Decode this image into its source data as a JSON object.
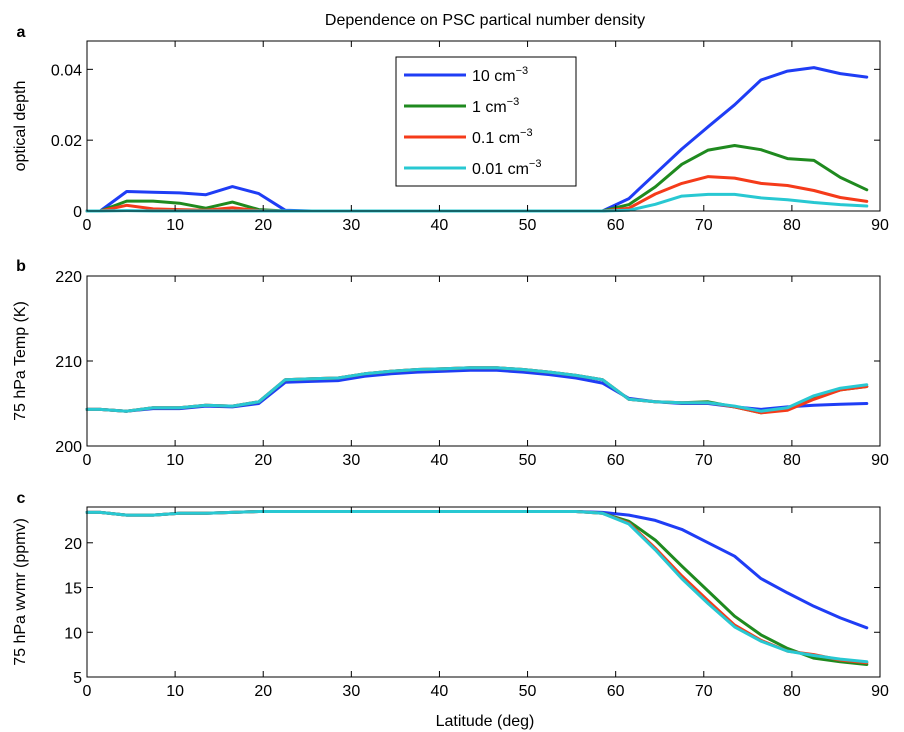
{
  "figure_title": "Dependence on PSC partical number density",
  "xlabel": "Latitude (deg)",
  "legend": [
    {
      "base": "10 cm",
      "exp": "−3",
      "color": "#1f3df5"
    },
    {
      "base": "1 cm",
      "exp": "−3",
      "color": "#1f8a1f"
    },
    {
      "base": "0.1 cm",
      "exp": "−3",
      "color": "#f53b1a"
    },
    {
      "base": "0.01 cm",
      "exp": "−3",
      "color": "#28c8d2"
    }
  ],
  "chart_data": [
    {
      "panel_label": "a",
      "type": "line",
      "ylabel": "optical depth",
      "xlim": [
        0,
        90
      ],
      "ylim": [
        0,
        0.048
      ],
      "xticks": [
        0,
        10,
        20,
        30,
        40,
        50,
        60,
        70,
        80,
        90
      ],
      "xtick_labels": [
        "0",
        "10",
        "20",
        "30",
        "40",
        "50",
        "60",
        "70",
        "80",
        "90"
      ],
      "yticks": [
        0,
        0.02,
        0.04
      ],
      "ytick_labels": [
        "0",
        "0.02",
        "0.04"
      ],
      "x": [
        0,
        1.5,
        4.5,
        7.5,
        10.5,
        13.5,
        16.5,
        19.5,
        22.5,
        25.5,
        28.5,
        31.5,
        34.5,
        37.5,
        40.5,
        43.5,
        46.5,
        49.5,
        52.5,
        55.5,
        58.5,
        61.5,
        64.5,
        67.5,
        70.5,
        73.5,
        76.5,
        79.5,
        82.5,
        85.5,
        88.5
      ],
      "series": [
        {
          "name": "10 cm−3",
          "values": [
            0,
            0,
            0.0055,
            0.0053,
            0.0051,
            0.0046,
            0.0069,
            0.0049,
            0.0002,
            0,
            0,
            0,
            0,
            0,
            0,
            0,
            0,
            0,
            0,
            0,
            0,
            0.0035,
            0.0105,
            0.0175,
            0.0238,
            0.03,
            0.037,
            0.0395,
            0.0405,
            0.0388,
            0.0378
          ]
        },
        {
          "name": "1 cm−3",
          "values": [
            0,
            0,
            0.0028,
            0.0028,
            0.0022,
            0.0008,
            0.0025,
            0.0004,
            0,
            0,
            0,
            0,
            0,
            0,
            0,
            0,
            0,
            0,
            0,
            0,
            0,
            0.0018,
            0.0068,
            0.0132,
            0.0172,
            0.0185,
            0.0173,
            0.0148,
            0.0143,
            0.0095,
            0.006
          ]
        },
        {
          "name": "0.1 cm−3",
          "values": [
            0,
            0,
            0.0016,
            0.0006,
            0.0004,
            0.0002,
            0.0009,
            0.0001,
            0,
            0,
            0,
            0,
            0,
            0,
            0,
            0,
            0,
            0,
            0,
            0,
            0,
            0.0008,
            0.0048,
            0.0078,
            0.0097,
            0.0093,
            0.0078,
            0.0072,
            0.0058,
            0.0038,
            0.0027
          ]
        },
        {
          "name": "0.01 cm−3",
          "values": [
            0,
            0,
            0.0001,
            0,
            0,
            0,
            0,
            0,
            0,
            0,
            0,
            0,
            0,
            0,
            0,
            0,
            0,
            0,
            0,
            0,
            0,
            0.0002,
            0.0019,
            0.0042,
            0.0047,
            0.0047,
            0.0037,
            0.0032,
            0.0024,
            0.0018,
            0.0014
          ]
        }
      ]
    },
    {
      "panel_label": "b",
      "type": "line",
      "ylabel": "75 hPa Temp (K)",
      "xlim": [
        0,
        90
      ],
      "ylim": [
        200,
        220
      ],
      "xticks": [
        0,
        10,
        20,
        30,
        40,
        50,
        60,
        70,
        80,
        90
      ],
      "xtick_labels": [
        "0",
        "10",
        "20",
        "30",
        "40",
        "50",
        "60",
        "70",
        "80",
        "90"
      ],
      "yticks": [
        200,
        210,
        220
      ],
      "ytick_labels": [
        "200",
        "210",
        "220"
      ],
      "x": [
        0,
        1.5,
        4.5,
        7.5,
        10.5,
        13.5,
        16.5,
        19.5,
        22.5,
        25.5,
        28.5,
        31.5,
        34.5,
        37.5,
        40.5,
        43.5,
        46.5,
        49.5,
        52.5,
        55.5,
        58.5,
        61.5,
        64.5,
        67.5,
        70.5,
        73.5,
        76.5,
        79.5,
        82.5,
        85.5,
        88.5
      ],
      "series": [
        {
          "name": "10 cm−3",
          "values": [
            204.3,
            204.3,
            204.1,
            204.4,
            204.4,
            204.7,
            204.6,
            205.0,
            207.5,
            207.6,
            207.7,
            208.2,
            208.5,
            208.7,
            208.8,
            208.9,
            208.9,
            208.7,
            208.4,
            208.0,
            207.4,
            205.6,
            205.2,
            205.0,
            205.0,
            204.6,
            204.3,
            204.6,
            204.8,
            204.9,
            205.0
          ]
        },
        {
          "name": "1 cm−3",
          "values": [
            204.3,
            204.3,
            204.1,
            204.5,
            204.5,
            204.8,
            204.7,
            205.2,
            207.8,
            207.9,
            208.0,
            208.5,
            208.8,
            209.0,
            209.1,
            209.2,
            209.2,
            209.0,
            208.7,
            208.3,
            207.8,
            205.5,
            205.2,
            205.1,
            205.2,
            204.6,
            203.9,
            204.3,
            205.7,
            206.6,
            207.0
          ]
        },
        {
          "name": "0.1 cm−3",
          "values": [
            204.3,
            204.3,
            204.1,
            204.5,
            204.5,
            204.8,
            204.7,
            205.2,
            207.8,
            207.9,
            208.0,
            208.5,
            208.8,
            209.0,
            209.1,
            209.2,
            209.2,
            209.0,
            208.7,
            208.3,
            207.8,
            205.5,
            205.2,
            205.1,
            205.1,
            204.6,
            203.9,
            204.2,
            205.5,
            206.6,
            207.0
          ]
        },
        {
          "name": "0.01 cm−3",
          "values": [
            204.3,
            204.3,
            204.1,
            204.5,
            204.5,
            204.8,
            204.7,
            205.2,
            207.8,
            207.9,
            208.0,
            208.5,
            208.8,
            209.0,
            209.1,
            209.2,
            209.2,
            209.0,
            208.7,
            208.3,
            207.8,
            205.5,
            205.2,
            205.1,
            205.1,
            204.7,
            204.1,
            204.5,
            205.9,
            206.8,
            207.2
          ]
        }
      ]
    },
    {
      "panel_label": "c",
      "type": "line",
      "ylabel": "75 hPa wvmr (ppmv)",
      "xlim": [
        0,
        90
      ],
      "ylim": [
        5,
        24
      ],
      "xticks": [
        0,
        10,
        20,
        30,
        40,
        50,
        60,
        70,
        80,
        90
      ],
      "xtick_labels": [
        "0",
        "10",
        "20",
        "30",
        "40",
        "50",
        "60",
        "70",
        "80",
        "90"
      ],
      "yticks": [
        5,
        10,
        15,
        20
      ],
      "ytick_labels": [
        "5",
        "10",
        "15",
        "20"
      ],
      "x": [
        0,
        1.5,
        4.5,
        7.5,
        10.5,
        13.5,
        16.5,
        19.5,
        22.5,
        25.5,
        28.5,
        31.5,
        34.5,
        37.5,
        40.5,
        43.5,
        46.5,
        49.5,
        52.5,
        55.5,
        58.5,
        61.5,
        64.5,
        67.5,
        70.5,
        73.5,
        76.5,
        79.5,
        82.5,
        85.5,
        88.5
      ],
      "series": [
        {
          "name": "10 cm−3",
          "values": [
            23.4,
            23.4,
            23.1,
            23.1,
            23.3,
            23.3,
            23.4,
            23.5,
            23.5,
            23.5,
            23.5,
            23.5,
            23.5,
            23.5,
            23.5,
            23.5,
            23.5,
            23.5,
            23.5,
            23.5,
            23.4,
            23.1,
            22.5,
            21.5,
            20.0,
            18.5,
            16.0,
            14.4,
            12.9,
            11.6,
            10.5
          ]
        },
        {
          "name": "1 cm−3",
          "values": [
            23.4,
            23.4,
            23.1,
            23.1,
            23.3,
            23.3,
            23.4,
            23.5,
            23.5,
            23.5,
            23.5,
            23.5,
            23.5,
            23.5,
            23.5,
            23.5,
            23.5,
            23.5,
            23.5,
            23.5,
            23.3,
            22.4,
            20.3,
            17.4,
            14.6,
            11.8,
            9.7,
            8.2,
            7.1,
            6.7,
            6.4
          ]
        },
        {
          "name": "0.1 cm−3",
          "values": [
            23.4,
            23.4,
            23.1,
            23.1,
            23.3,
            23.3,
            23.4,
            23.5,
            23.5,
            23.5,
            23.5,
            23.5,
            23.5,
            23.5,
            23.5,
            23.5,
            23.5,
            23.5,
            23.5,
            23.5,
            23.3,
            22.2,
            19.4,
            16.3,
            13.5,
            10.8,
            9.1,
            7.9,
            7.5,
            6.9,
            6.6
          ]
        },
        {
          "name": "0.01 cm−3",
          "values": [
            23.4,
            23.4,
            23.1,
            23.1,
            23.3,
            23.3,
            23.4,
            23.5,
            23.5,
            23.5,
            23.5,
            23.5,
            23.5,
            23.5,
            23.5,
            23.5,
            23.5,
            23.5,
            23.5,
            23.5,
            23.3,
            22.1,
            19.2,
            16.0,
            13.2,
            10.6,
            9.0,
            7.9,
            7.4,
            7.0,
            6.7
          ]
        }
      ]
    }
  ]
}
